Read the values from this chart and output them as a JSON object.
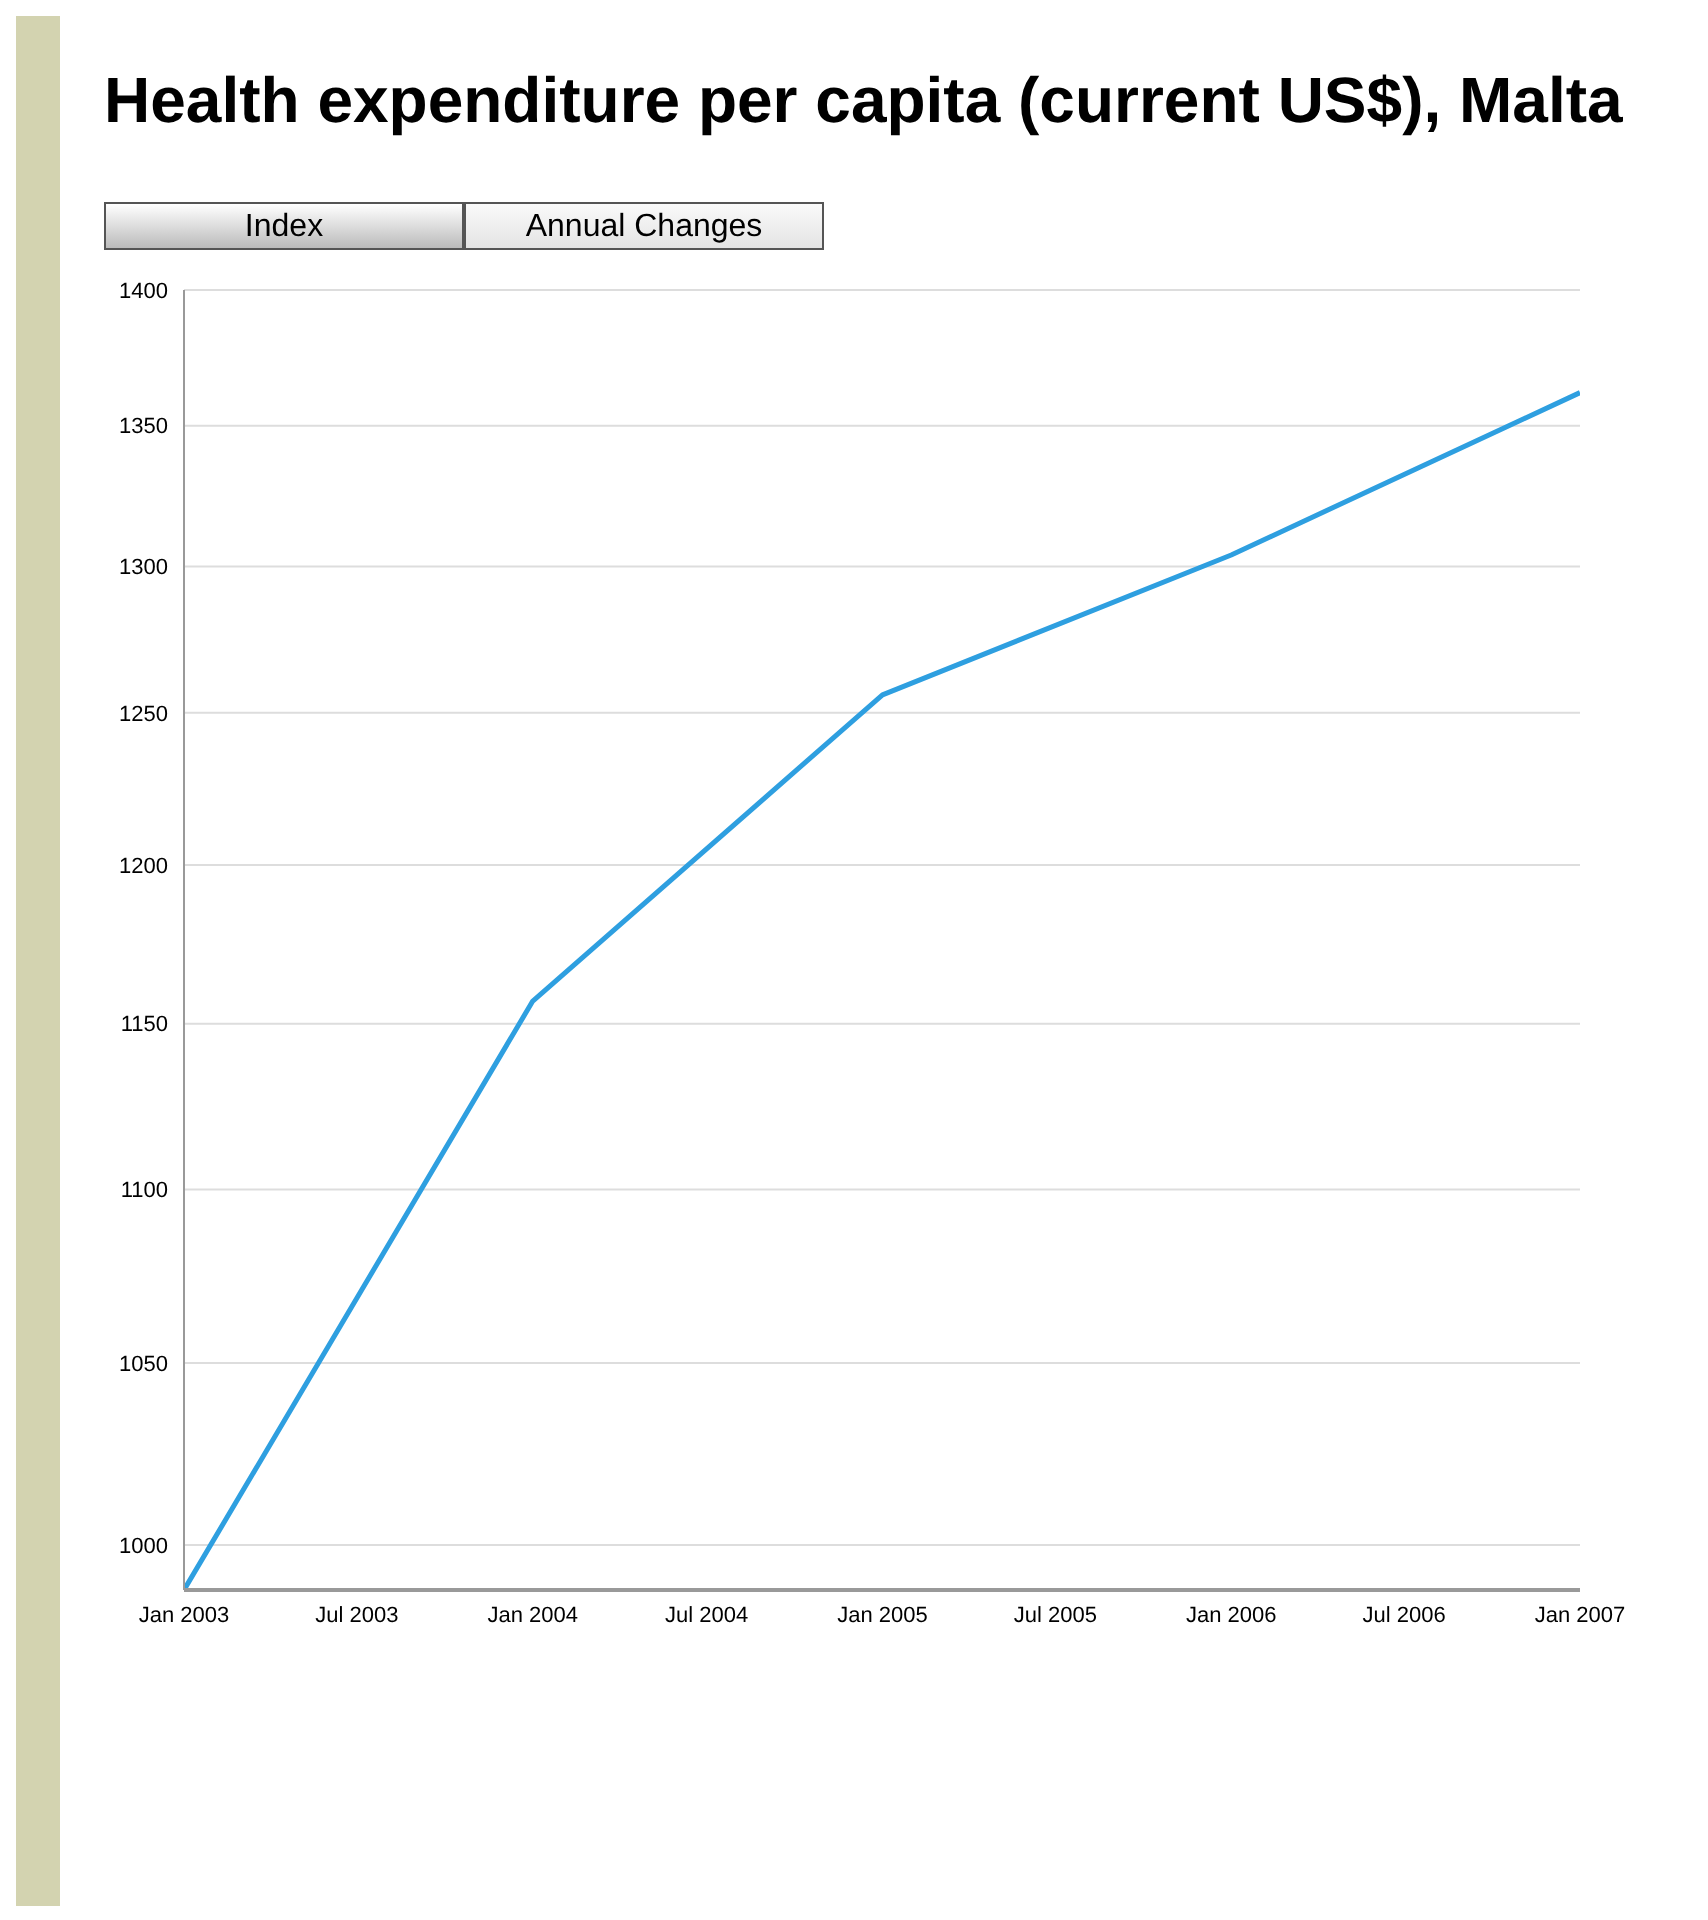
{
  "chart_data": {
    "type": "line",
    "title": "Health expenditure per capita (current US$), Malta",
    "annotations": [
      "Index",
      "Annual Changes"
    ],
    "x": [
      "2003-01",
      "2004-01",
      "2005-01",
      "2006-01",
      "2007-01"
    ],
    "series": [
      {
        "color": "#2e9fe0",
        "values": [
          988,
          1157,
          1256,
          1304,
          1362
        ]
      }
    ],
    "xlim": [
      "2003-01",
      "2007-01"
    ],
    "xticks": [
      {
        "value": "2003-01",
        "label": "Jan 2003"
      },
      {
        "value": "2003-07",
        "label": "Jul 2003"
      },
      {
        "value": "2004-01",
        "label": "Jan 2004"
      },
      {
        "value": "2004-07",
        "label": "Jul 2004"
      },
      {
        "value": "2005-01",
        "label": "Jan 2005"
      },
      {
        "value": "2005-07",
        "label": "Jul 2005"
      },
      {
        "value": "2006-01",
        "label": "Jan 2006"
      },
      {
        "value": "2006-07",
        "label": "Jul 2006"
      },
      {
        "value": "2007-01",
        "label": "Jan 2007"
      }
    ],
    "ylim": [
      988,
      1400
    ],
    "yticks": [
      1000,
      1050,
      1100,
      1150,
      1200,
      1250,
      1300,
      1350,
      1400
    ],
    "log": "y",
    "grid": "y",
    "legend": false,
    "marker": "none",
    "line_style": "solid"
  }
}
